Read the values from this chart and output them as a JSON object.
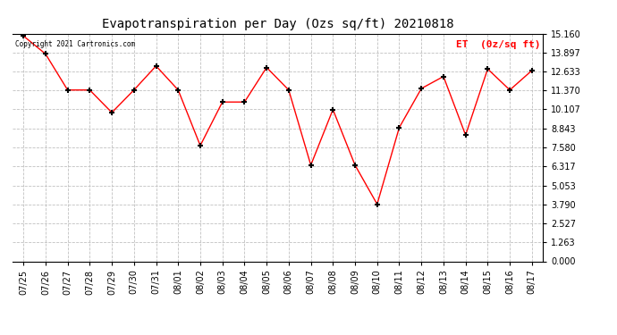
{
  "title": "Evapotranspiration per Day (Ozs sq/ft) 20210818",
  "legend_label": "ET  (0z/sq ft)",
  "copyright_text": "Copyright 2021 Cartronics.com",
  "line_color": "red",
  "marker_color": "black",
  "background_color": "#ffffff",
  "grid_color": "#c0c0c0",
  "ylim": [
    0.0,
    15.16
  ],
  "yticks": [
    0.0,
    1.263,
    2.527,
    3.79,
    5.053,
    6.317,
    7.58,
    8.843,
    10.107,
    11.37,
    12.633,
    13.897,
    15.16
  ],
  "dates": [
    "07/25",
    "07/26",
    "07/27",
    "07/28",
    "07/29",
    "07/30",
    "07/31",
    "08/01",
    "08/02",
    "08/03",
    "08/04",
    "08/05",
    "08/06",
    "08/07",
    "08/08",
    "08/09",
    "08/10",
    "08/11",
    "08/12",
    "08/13",
    "08/14",
    "08/15",
    "08/16",
    "08/17"
  ],
  "values": [
    15.0,
    13.8,
    11.4,
    11.4,
    9.9,
    11.4,
    13.0,
    11.4,
    7.7,
    10.6,
    10.6,
    12.9,
    11.4,
    6.4,
    10.1,
    6.4,
    3.8,
    8.9,
    11.5,
    12.3,
    8.4,
    12.8,
    11.4,
    12.7
  ]
}
